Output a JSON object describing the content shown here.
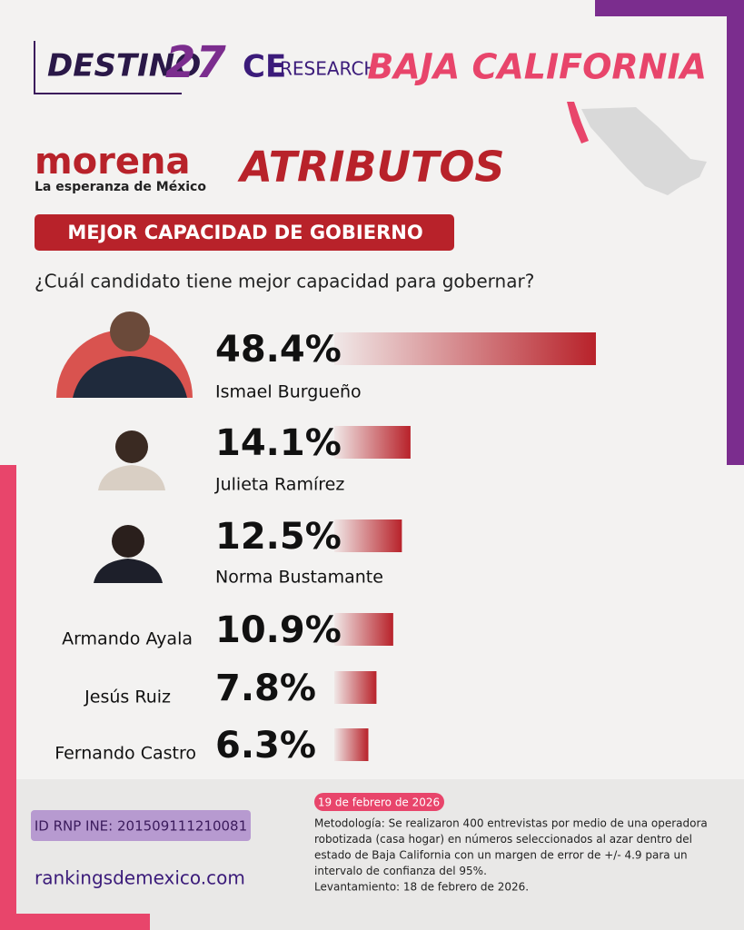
{
  "header": {
    "brand": "DESTINO",
    "brand_number": "27",
    "partner_prefix": "CE",
    "partner": "RESEARCH",
    "state": "BAJA CALIFORNIA",
    "party": "morena",
    "party_slogan": "La esperanza de México",
    "section": "ATRIBUTOS",
    "banner": "MEJOR CAPACIDAD DE GOBIERNO"
  },
  "chart_data": {
    "type": "bar",
    "orientation": "horizontal",
    "title": "¿Cuál candidato tiene mejor capacidad para gobernar?",
    "categories": [
      "Ismael Burgueño",
      "Julieta Ramírez",
      "Norma Bustamante",
      "Armando Ayala",
      "Jesús Ruiz",
      "Fernando Castro"
    ],
    "values": [
      48.4,
      14.1,
      12.5,
      10.9,
      7.8,
      6.3
    ],
    "value_labels": [
      "48.4%",
      "14.1%",
      "12.5%",
      "10.9%",
      "7.8%",
      "6.3%"
    ],
    "color": "#b8222a"
  },
  "footer": {
    "date": "19 de febrero de 2026",
    "id": "ID RNP INE: 201509111210081",
    "url": "rankingsdemexico.com",
    "methodology": [
      "Metodología: Se realizaron 400 entrevistas por medio de una operadora",
      "robotizada (casa hogar) en números seleccionados al azar dentro del",
      "estado de Baja California con un margen de error de +/- 4.9 para un",
      "intervalo de confianza del 95%.",
      "Levantamiento: 18 de febrero de 2026."
    ]
  }
}
